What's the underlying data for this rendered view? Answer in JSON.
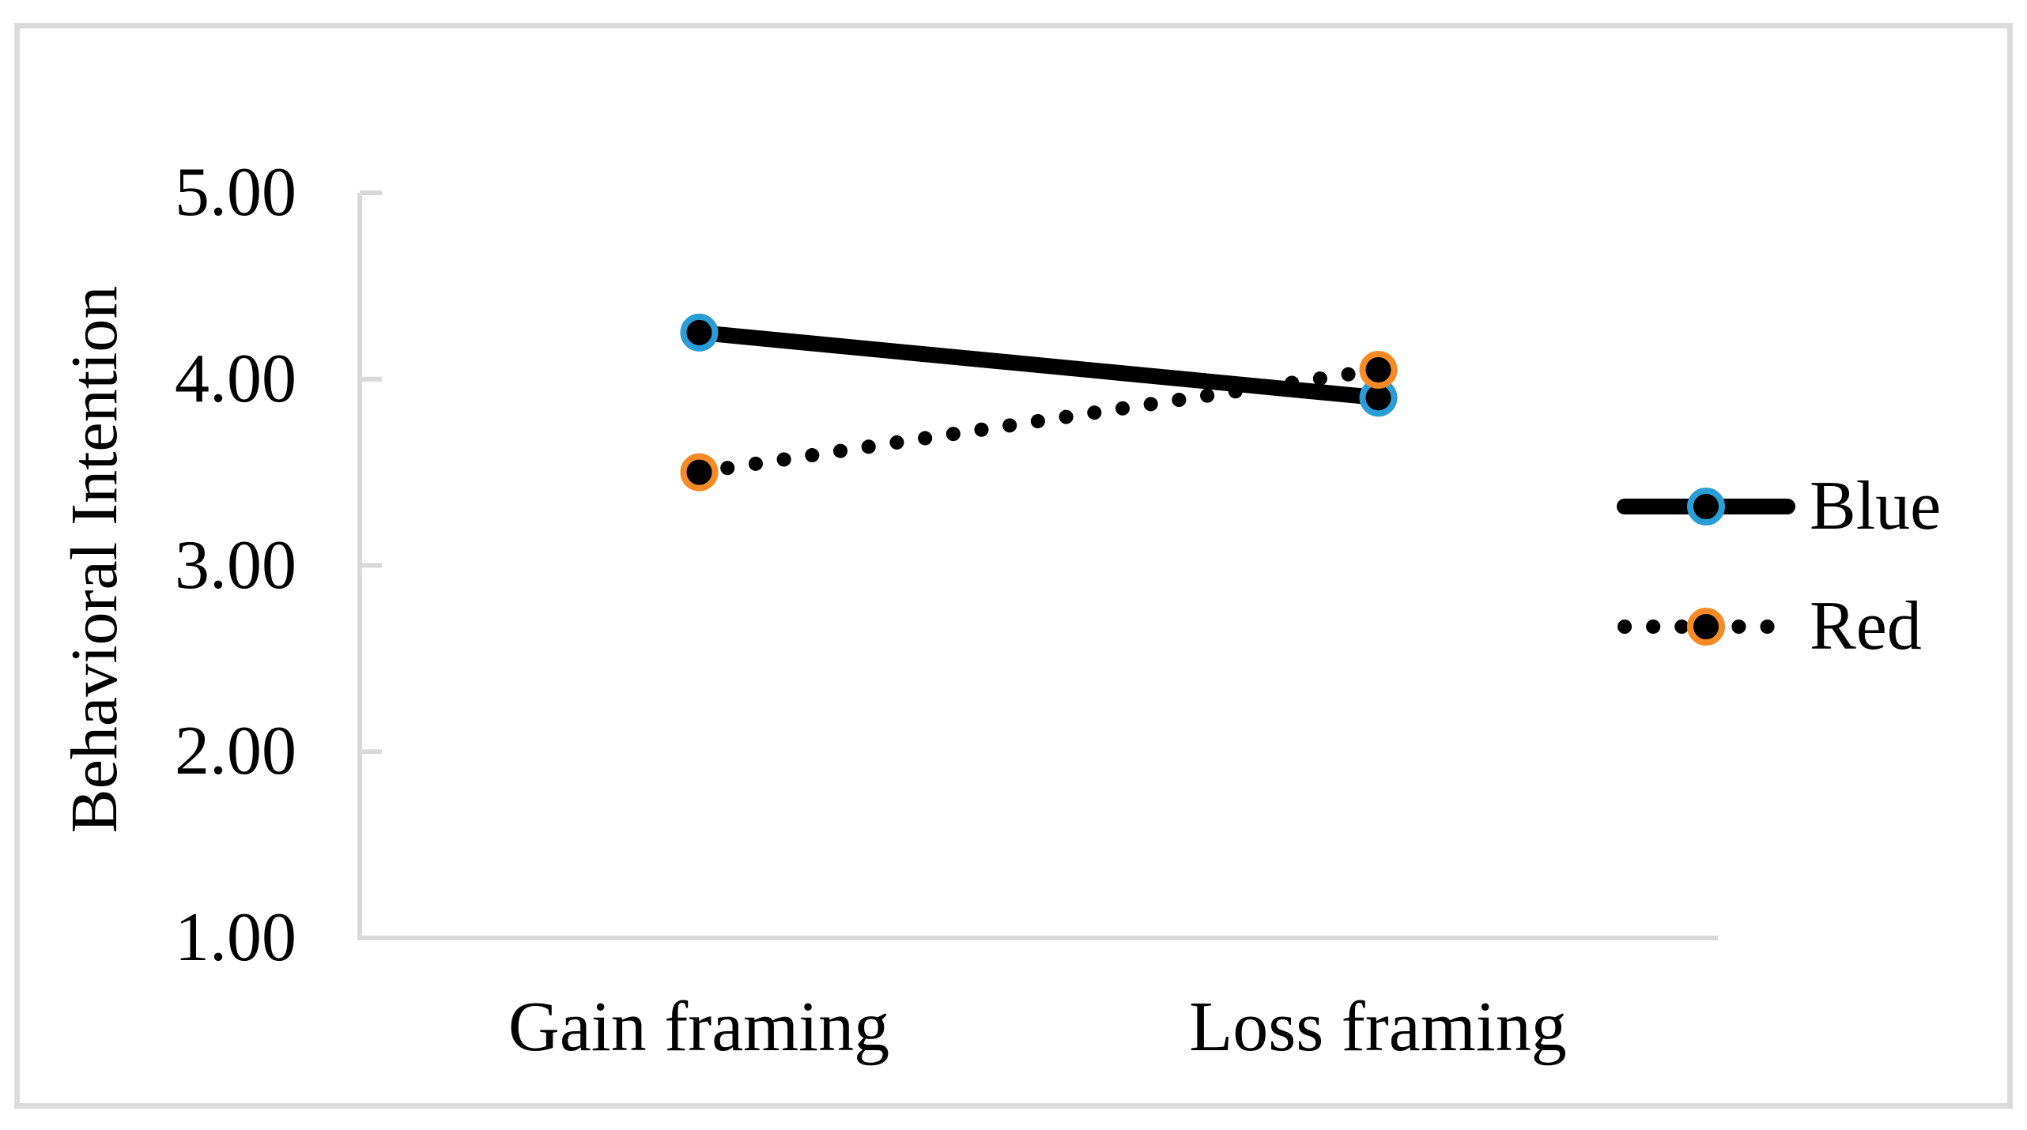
{
  "chart_data": {
    "type": "line",
    "title": "",
    "categories": [
      "Gain framing",
      "Loss framing"
    ],
    "series": [
      {
        "name": "Blue",
        "values": [
          4.25,
          3.9
        ],
        "line_style": "solid",
        "line_color": "#000000",
        "marker_fill": "#000000",
        "marker_ring_color": "#2A9DD7"
      },
      {
        "name": "Red",
        "values": [
          3.5,
          4.05
        ],
        "line_style": "dotted",
        "line_color": "#000000",
        "marker_fill": "#000000",
        "marker_ring_color": "#F68A24"
      }
    ],
    "xlabel": "",
    "ylabel": "Behavioral Intention",
    "ylim": [
      1.0,
      5.0
    ],
    "ytick_step": 1.0,
    "ytick_labels": [
      "5.00",
      "4.00",
      "3.00",
      "2.00",
      "1.00"
    ],
    "grid": false,
    "legend_position": "right",
    "axis_color": "#D9D9D9",
    "frame_color": "#DBDBDB",
    "background_color": "#FFFFFF"
  }
}
